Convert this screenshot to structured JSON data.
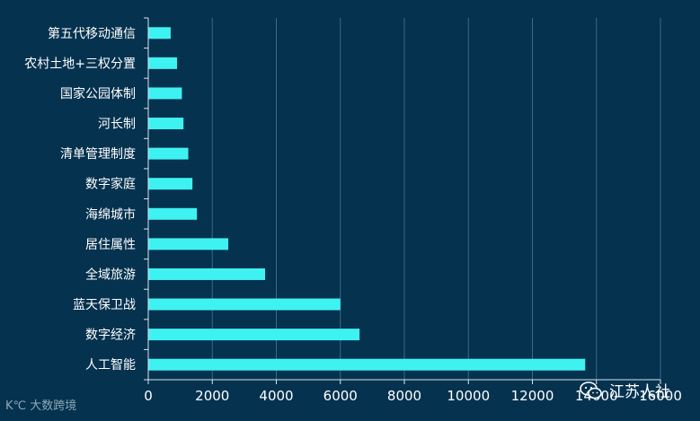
{
  "chart_data": {
    "type": "bar",
    "orientation": "horizontal",
    "categories": [
      "第五代移动通信",
      "农村土地+三权分置",
      "国家公园体制",
      "河长制",
      "清单管理制度",
      "数字家庭",
      "海绵城市",
      "居住属性",
      "全域旅游",
      "蓝天保卫战",
      "数字经济",
      "人工智能"
    ],
    "values": [
      700,
      900,
      1050,
      1100,
      1250,
      1380,
      1520,
      2500,
      3650,
      6000,
      6600,
      13650
    ],
    "xlim": [
      0,
      16000
    ],
    "xticks": [
      0,
      2000,
      4000,
      6000,
      8000,
      10000,
      12000,
      14000,
      16000
    ],
    "grid": true,
    "bar_color": "#3ff2f2",
    "background": "#04324f"
  },
  "watermark": {
    "left_text": "大数跨境",
    "left_logo": "K℃",
    "right_text": "江苏人社",
    "right_icon": "wechat-icon"
  }
}
